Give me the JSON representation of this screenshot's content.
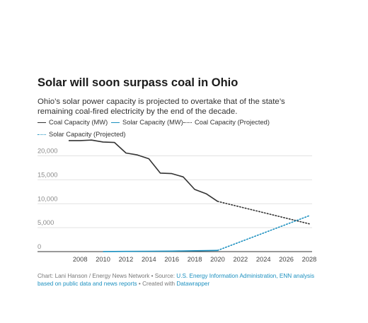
{
  "header": {
    "title": "Solar will soon surpass coal in Ohio",
    "subtitle": "Ohio’s solar power capacity is projected to overtake that of the state’s remaining coal-fired electricity by the end of the decade."
  },
  "legend": [
    {
      "label": "Coal Capacity (MW)",
      "color": "#333333",
      "style": "solid"
    },
    {
      "label": "Solar Capacity (MW)",
      "color": "#1a8fbf",
      "style": "solid"
    },
    {
      "label": "Coal Capacity (Projected)",
      "color": "#333333",
      "style": "dotted"
    },
    {
      "label": "Solar Capacity (Projected)",
      "color": "#1a8fbf",
      "style": "dotted"
    }
  ],
  "footer": {
    "prefix": "Chart: Lani Hanson / Energy News Network • Source: ",
    "source_link": "U.S. Energy Information Administration, ENN analysis based on public data and news reports",
    "middle": " • Created with ",
    "tool_link": "Datawrapper"
  },
  "chart_data": {
    "type": "line",
    "xlim": [
      2007,
      2028
    ],
    "ylim": [
      0,
      22000
    ],
    "x_ticks": [
      "2008",
      "2010",
      "2012",
      "2014",
      "2016",
      "2018",
      "2020",
      "2022",
      "2024",
      "2026",
      "2028"
    ],
    "y_ticks": [
      "0",
      "5,000",
      "10,000",
      "15,000",
      "20,000"
    ],
    "y_tick_values": [
      0,
      5000,
      10000,
      15000,
      20000
    ],
    "grid": true,
    "series": [
      {
        "name": "Coal Capacity (MW)",
        "color": "#333333",
        "style": "solid",
        "x": [
          2007,
          2008,
          2009,
          2010,
          2011,
          2012,
          2013,
          2014,
          2015,
          2016,
          2017,
          2018,
          2019,
          2020
        ],
        "y": [
          23200,
          23200,
          23300,
          22900,
          22800,
          20600,
          20200,
          19400,
          16400,
          16300,
          15600,
          13000,
          12100,
          10500
        ]
      },
      {
        "name": "Solar Capacity (MW)",
        "color": "#1a8fbf",
        "style": "solid",
        "x": [
          2010,
          2012,
          2014,
          2016,
          2018,
          2020
        ],
        "y": [
          20,
          40,
          70,
          110,
          170,
          250
        ]
      },
      {
        "name": "Coal Capacity (Projected)",
        "color": "#333333",
        "style": "dotted",
        "x": [
          2020,
          2028
        ],
        "y": [
          10500,
          5800
        ]
      },
      {
        "name": "Solar Capacity (Projected)",
        "color": "#1a8fbf",
        "style": "dotted",
        "x": [
          2020,
          2028
        ],
        "y": [
          250,
          7500
        ]
      }
    ]
  }
}
